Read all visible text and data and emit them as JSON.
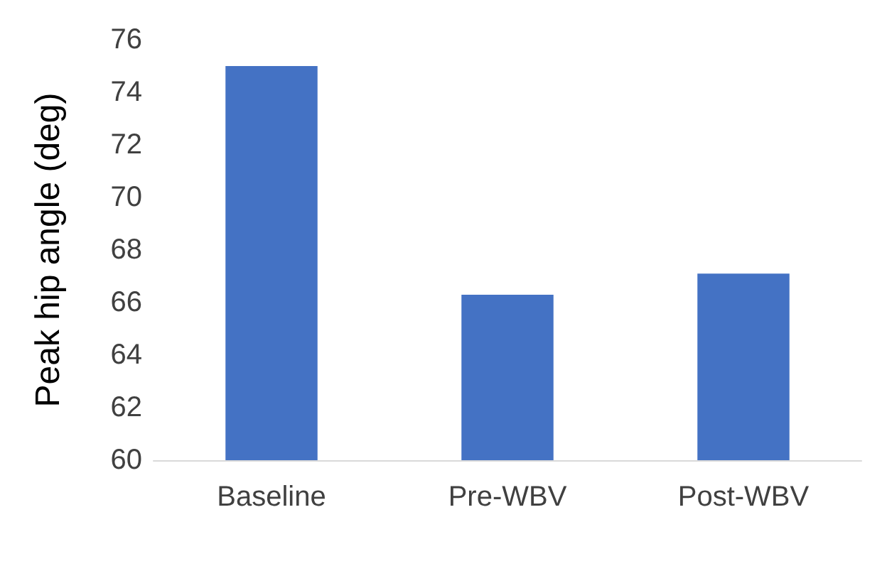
{
  "chart_data": {
    "type": "bar",
    "ylabel": "Peak hip angle (deg)",
    "categories": [
      "Baseline",
      "Pre-WBV",
      "Post-WBV"
    ],
    "values": [
      75.0,
      66.3,
      67.1
    ],
    "color": "#4472c4",
    "ylim": [
      60,
      76
    ],
    "yticks": [
      60,
      62,
      64,
      66,
      68,
      70,
      72,
      74,
      76
    ],
    "grid": false
  }
}
